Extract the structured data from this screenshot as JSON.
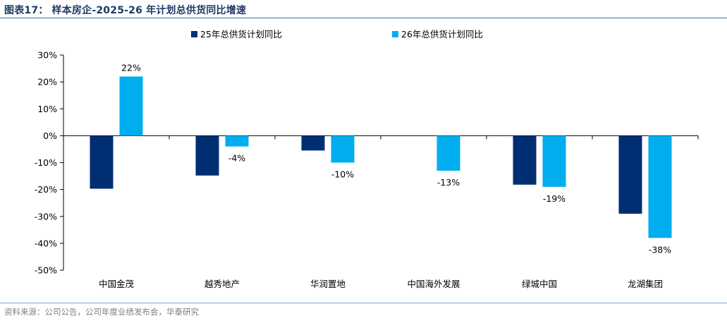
{
  "header": {
    "title": "图表17： 样本房企-2025-26 年计划总供货同比增速"
  },
  "footer": {
    "source": "资料来源：公司公告，公司年度业绩发布会，华泰研究"
  },
  "colors": {
    "series_2025": "#002e73",
    "series_2026": "#00aeef",
    "title": "#1f3864",
    "rule": "#3a6fb0"
  },
  "chart_data": {
    "type": "bar",
    "categories": [
      "中国金茂",
      "越秀地产",
      "华润置地",
      "中国海外发展",
      "绿城中国",
      "龙湖集团"
    ],
    "series": [
      {
        "name": "25年总供货计划同比",
        "values": [
          -19.7,
          -14.8,
          -5.5,
          null,
          -18.2,
          -29.0
        ],
        "data_labels": [
          null,
          null,
          null,
          null,
          null,
          null
        ]
      },
      {
        "name": "26年总供货计划同比",
        "values": [
          22,
          -4,
          -10,
          -13,
          -19,
          -38
        ],
        "data_labels": [
          "22%",
          "-4%",
          "-10%",
          "-13%",
          "-19%",
          "-38%"
        ]
      }
    ],
    "ylim": [
      -50,
      30
    ],
    "yticks": [
      30,
      20,
      10,
      0,
      -10,
      -20,
      -30,
      -40,
      -50
    ],
    "ytick_labels": [
      "30%",
      "20%",
      "10%",
      "0%",
      "-10%",
      "-20%",
      "-30%",
      "-40%",
      "-50%"
    ],
    "xlabel": "",
    "ylabel": "",
    "legend_position": "top",
    "grid": false
  }
}
